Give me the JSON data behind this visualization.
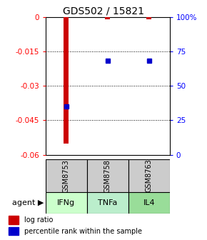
{
  "title": "GDS502 / 15821",
  "samples": [
    "GSM8753",
    "GSM8758",
    "GSM8763"
  ],
  "agents": [
    "IFNg",
    "TNFa",
    "IL4"
  ],
  "log_ratios": [
    -0.055,
    -0.001,
    -0.001
  ],
  "percentile_ranks": [
    35,
    68,
    68
  ],
  "ylim_left": [
    -0.06,
    0
  ],
  "ylim_right": [
    0,
    100
  ],
  "yticks_left": [
    0,
    -0.015,
    -0.03,
    -0.045,
    -0.06
  ],
  "yticks_right": [
    100,
    75,
    50,
    25,
    0
  ],
  "bar_color": "#cc0000",
  "dot_color": "#0000cc",
  "agent_colors": [
    "#ccffcc",
    "#bbeecc",
    "#99dd99"
  ],
  "sample_bg": "#cccccc",
  "bar_width": 0.12,
  "title_fontsize": 10,
  "tick_fontsize": 7.5,
  "agent_fontsize": 8,
  "sample_fontsize": 7,
  "legend_fontsize": 7
}
